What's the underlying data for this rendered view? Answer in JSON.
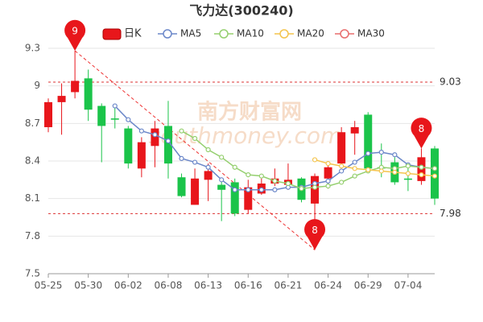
{
  "chart_data": {
    "type": "candlestick",
    "title": "飞力达(300240)",
    "categories": [
      "05-25",
      null,
      null,
      "05-30",
      null,
      null,
      "06-02",
      null,
      null,
      "06-08",
      null,
      null,
      "06-13",
      null,
      null,
      "06-16",
      null,
      null,
      "06-21",
      null,
      null,
      "06-24",
      null,
      null,
      "06-29",
      null,
      null,
      "07-04",
      null,
      null
    ],
    "candles": {
      "name": "日K",
      "up_color": "#e8161b",
      "down_color": "#1bc44a",
      "open": [
        8.67,
        8.87,
        8.95,
        9.06,
        8.84,
        8.74,
        8.66,
        8.34,
        8.52,
        8.68,
        8.27,
        8.05,
        8.25,
        8.21,
        8.23,
        8.01,
        8.14,
        8.22,
        8.21,
        8.26,
        8.06,
        8.26,
        8.38,
        8.62,
        8.77,
        8.35,
        8.39,
        8.26,
        8.24,
        8.5
      ],
      "close": [
        8.87,
        8.92,
        9.04,
        8.81,
        8.68,
        8.73,
        8.38,
        8.55,
        8.66,
        8.38,
        8.12,
        8.26,
        8.32,
        8.17,
        7.98,
        8.19,
        8.22,
        8.26,
        8.25,
        8.09,
        8.28,
        8.35,
        8.63,
        8.67,
        8.34,
        8.34,
        8.23,
        8.25,
        8.43,
        8.1
      ],
      "high": [
        8.9,
        9.02,
        9.28,
        9.13,
        8.86,
        8.85,
        8.68,
        8.59,
        8.72,
        8.88,
        8.3,
        8.34,
        8.38,
        8.26,
        8.26,
        8.25,
        8.26,
        8.34,
        8.38,
        8.27,
        8.3,
        8.4,
        8.67,
        8.72,
        8.79,
        8.54,
        8.43,
        8.34,
        8.5,
        8.52
      ],
      "low": [
        8.63,
        8.61,
        8.9,
        8.72,
        8.39,
        8.66,
        8.34,
        8.27,
        8.35,
        8.26,
        8.11,
        8.05,
        8.08,
        7.92,
        7.96,
        7.98,
        8.13,
        8.2,
        8.17,
        8.07,
        7.69,
        8.18,
        8.37,
        8.45,
        8.32,
        8.27,
        8.21,
        8.16,
        8.21,
        8.05
      ]
    },
    "series": [
      {
        "name": "MA5",
        "color": "#6b87c9",
        "values": [
          null,
          null,
          null,
          null,
          null,
          8.84,
          8.73,
          8.64,
          8.61,
          8.56,
          8.42,
          8.39,
          8.35,
          8.25,
          8.17,
          8.17,
          8.17,
          8.17,
          8.19,
          8.19,
          8.22,
          8.24,
          8.32,
          8.39,
          8.46,
          8.47,
          8.45,
          8.37,
          8.35,
          8.34
        ]
      },
      {
        "name": "MA10",
        "color": "#95cf6f",
        "values": [
          null,
          null,
          null,
          null,
          null,
          null,
          null,
          null,
          null,
          null,
          8.64,
          8.58,
          8.49,
          8.43,
          8.35,
          8.29,
          8.28,
          8.24,
          8.22,
          8.18,
          8.19,
          8.2,
          8.23,
          8.28,
          8.32,
          8.35,
          8.34,
          8.36,
          8.35,
          8.34
        ]
      },
      {
        "name": "MA20",
        "color": "#f4c44d",
        "values": [
          null,
          null,
          null,
          null,
          null,
          null,
          null,
          null,
          null,
          null,
          null,
          null,
          null,
          null,
          null,
          null,
          null,
          null,
          null,
          null,
          8.41,
          8.38,
          8.36,
          8.34,
          8.33,
          8.32,
          8.31,
          8.3,
          8.29,
          8.28
        ]
      },
      {
        "name": "MA30",
        "color": "#e86d6d",
        "values": [
          null,
          null,
          null,
          null,
          null,
          null,
          null,
          null,
          null,
          null,
          null,
          null,
          null,
          null,
          null,
          null,
          null,
          null,
          null,
          null,
          null,
          null,
          null,
          null,
          null,
          null,
          null,
          null,
          null,
          null
        ]
      }
    ],
    "ylim": [
      7.5,
      9.3
    ],
    "yticks": [
      7.5,
      7.8,
      8.1,
      8.4,
      8.7,
      9,
      9.3
    ],
    "grid": true,
    "reference_lines": [
      9.03,
      7.98
    ],
    "markers": [
      {
        "index": 2,
        "value": 9.28,
        "label": "9"
      },
      {
        "index": 20,
        "value": 7.69,
        "label": "8"
      },
      {
        "index": 28,
        "value": 8.5,
        "label": "8"
      }
    ],
    "watermark": [
      "南方财富网",
      "southmoney.com"
    ]
  }
}
